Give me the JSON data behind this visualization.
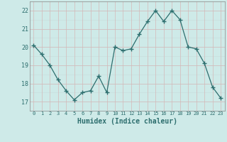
{
  "x": [
    0,
    1,
    2,
    3,
    4,
    5,
    6,
    7,
    8,
    9,
    10,
    11,
    12,
    13,
    14,
    15,
    16,
    17,
    18,
    19,
    20,
    21,
    22,
    23
  ],
  "y": [
    20.1,
    19.6,
    19.0,
    18.2,
    17.6,
    17.1,
    17.5,
    17.6,
    18.4,
    17.5,
    20.0,
    19.8,
    19.9,
    20.7,
    21.4,
    22.0,
    21.4,
    22.0,
    21.5,
    20.0,
    19.9,
    19.1,
    17.8,
    17.2
  ],
  "xlabel": "Humidex (Indice chaleur)",
  "ylim": [
    16.5,
    22.5
  ],
  "xlim": [
    -0.5,
    23.5
  ],
  "yticks": [
    17,
    18,
    19,
    20,
    21,
    22
  ],
  "xtick_labels": [
    "0",
    "1",
    "2",
    "3",
    "4",
    "5",
    "6",
    "7",
    "8",
    "9",
    "10",
    "11",
    "12",
    "13",
    "14",
    "15",
    "16",
    "17",
    "18",
    "19",
    "20",
    "21",
    "22",
    "23"
  ],
  "line_color": "#2d6e6e",
  "marker_color": "#2d6e6e",
  "bg_color": "#ceeae8",
  "grid_color_main": "#c8dada",
  "grid_color_red": "#d4b8b8",
  "tick_color": "#2d6e6e",
  "xlabel_color": "#2d6e6e"
}
